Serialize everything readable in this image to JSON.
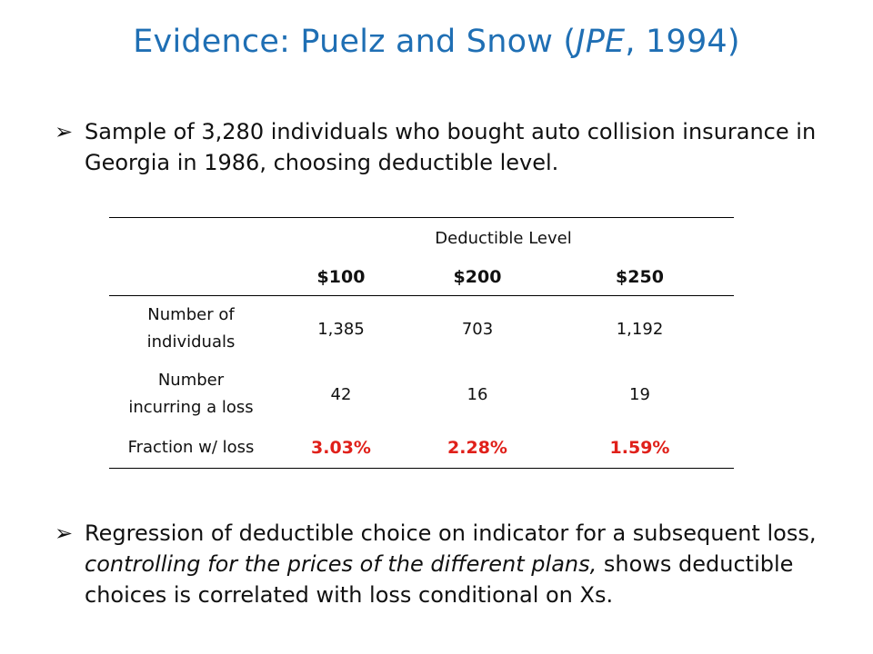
{
  "slide": {
    "title_prefix": "Evidence: Puelz and Snow (",
    "title_journal": "JPE",
    "title_suffix": ", 1994)"
  },
  "bullets": {
    "first": "Sample of 3,280 individuals who bought auto collision insurance in Georgia in 1986, choosing deductible level.",
    "second_part1": "Regression of deductible choice on indicator for a subsequent loss, ",
    "second_italic": "controlling for the prices of the different plans,",
    "second_part2": "  shows deductible choices is correlated with loss conditional on Xs."
  },
  "table": {
    "group_header": "Deductible Level",
    "columns": [
      "$100",
      "$200",
      "$250"
    ],
    "rows": [
      {
        "label": "Number of individuals",
        "values": [
          "1,385",
          "703",
          "1,192"
        ]
      },
      {
        "label": "Number incurring a loss",
        "values": [
          "42",
          "16",
          "19"
        ]
      },
      {
        "label": "Fraction w/ loss",
        "values": [
          "3.03%",
          "2.28%",
          "1.59%"
        ]
      }
    ]
  },
  "colors": {
    "title": "#1f6fb4",
    "highlight": "#e0201a"
  },
  "icons": {
    "bullet": "arrow-bullet-icon"
  }
}
